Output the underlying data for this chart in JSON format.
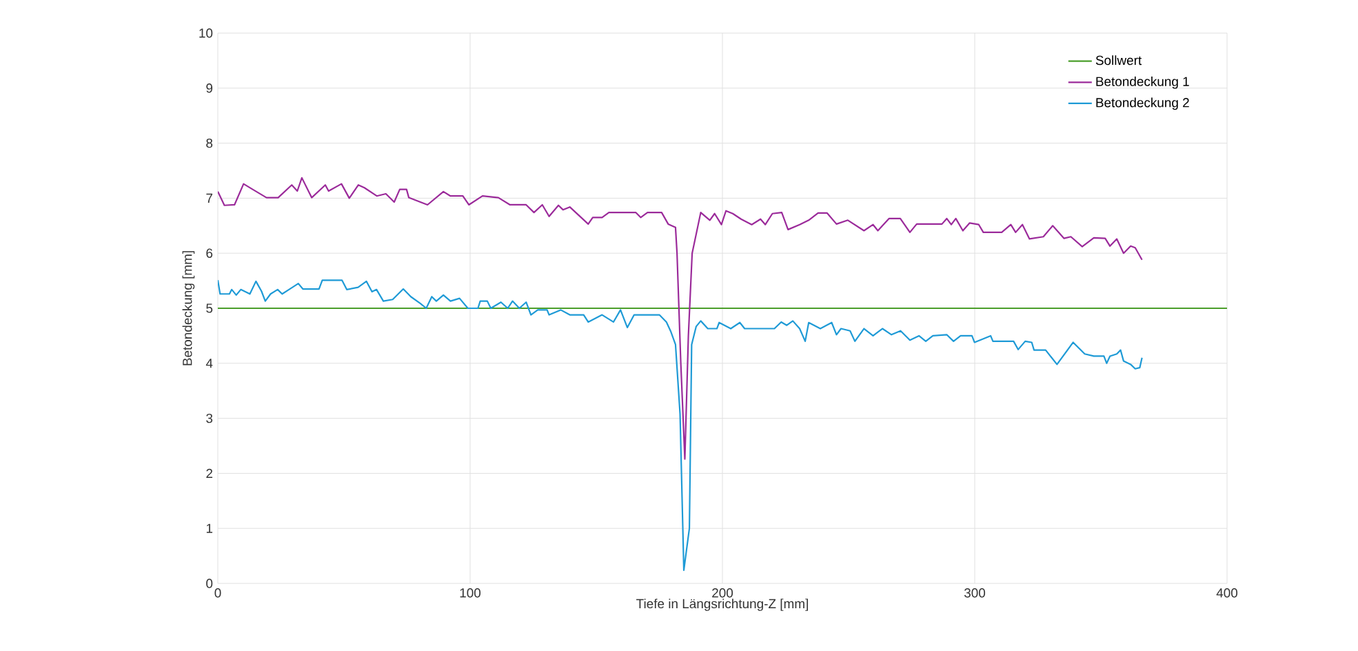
{
  "chart_data": {
    "type": "line",
    "xlabel": "Tiefe in Längsrichtung-Z [mm]",
    "ylabel": "Betondeckung [mm]",
    "xlim": [
      0,
      400
    ],
    "ylim": [
      0,
      10
    ],
    "xticks": [
      0,
      100,
      200,
      300,
      400
    ],
    "yticks": [
      0,
      1,
      2,
      3,
      4,
      5,
      6,
      7,
      8,
      9,
      10
    ],
    "grid": true,
    "legend": "top right",
    "series": [
      {
        "name": "Sollwert",
        "color": "#4a9e2a",
        "x": [
          0,
          400
        ],
        "values": [
          5,
          5
        ]
      },
      {
        "name": "Betondeckung 1",
        "color": "#9b2a9a",
        "x": [
          0,
          2.6,
          6.6,
          10.2,
          13.8,
          19.3,
          23.9,
          29.3,
          31.5,
          33.3,
          37.2,
          42.6,
          43.9,
          49.0,
          52.1,
          55.7,
          58.1,
          63.0,
          66.6,
          69.9,
          72.1,
          74.8,
          75.7,
          83.1,
          89.4,
          92.2,
          97.1,
          99.5,
          104.9,
          111.2,
          115.8,
          122.2,
          125.3,
          128.6,
          131.3,
          135.0,
          136.8,
          139.5,
          146.8,
          148.6,
          152.3,
          155.0,
          165.7,
          167.6,
          170.3,
          175.9,
          178.5,
          181.4,
          182.0,
          183.5,
          185.1,
          186.5,
          188.0,
          191.4,
          195.0,
          196.9,
          199.6,
          201.4,
          204.1,
          207.4,
          211.6,
          215.1,
          217.0,
          219.8,
          223.5,
          226.0,
          230.6,
          234.2,
          237.9,
          241.5,
          245.2,
          249.7,
          256.1,
          259.7,
          261.6,
          266.0,
          270.5,
          274.3,
          277.0,
          287.0,
          288.9,
          290.7,
          292.5,
          295.3,
          298.0,
          301.6,
          303.4,
          310.7,
          314.3,
          316.2,
          318.9,
          321.7,
          327.2,
          330.9,
          335.4,
          338.1,
          342.6,
          347.2,
          351.7,
          353.6,
          356.3,
          359.0,
          361.8,
          363.6,
          366.3
        ],
        "values": [
          7.12,
          6.87,
          6.88,
          7.26,
          7.16,
          7.01,
          7.01,
          7.24,
          7.13,
          7.37,
          7.01,
          7.24,
          7.13,
          7.26,
          7.0,
          7.24,
          7.19,
          7.04,
          7.08,
          6.93,
          7.16,
          7.16,
          7.01,
          6.88,
          7.12,
          7.04,
          7.04,
          6.88,
          7.04,
          7.01,
          6.88,
          6.88,
          6.74,
          6.88,
          6.67,
          6.87,
          6.79,
          6.84,
          6.53,
          6.65,
          6.65,
          6.74,
          6.74,
          6.65,
          6.74,
          6.74,
          6.53,
          6.47,
          6.0,
          4.0,
          2.26,
          4.5,
          6.0,
          6.74,
          6.6,
          6.72,
          6.52,
          6.77,
          6.72,
          6.62,
          6.52,
          6.62,
          6.52,
          6.72,
          6.74,
          6.43,
          6.52,
          6.6,
          6.73,
          6.73,
          6.53,
          6.6,
          6.41,
          6.52,
          6.41,
          6.63,
          6.63,
          6.38,
          6.53,
          6.53,
          6.63,
          6.52,
          6.63,
          6.41,
          6.55,
          6.52,
          6.38,
          6.38,
          6.52,
          6.38,
          6.52,
          6.26,
          6.3,
          6.5,
          6.27,
          6.3,
          6.12,
          6.28,
          6.27,
          6.13,
          6.26,
          6.0,
          6.13,
          6.1,
          5.88
        ]
      },
      {
        "name": "Betondeckung 2",
        "color": "#1e9ad6",
        "x": [
          0,
          0.9,
          4.6,
          5.5,
          7.3,
          9.1,
          12.7,
          15.1,
          17.3,
          18.8,
          20.9,
          23.7,
          25.5,
          28.2,
          31.9,
          33.7,
          40.1,
          41.4,
          49.2,
          51.1,
          55.6,
          58.9,
          61.1,
          62.9,
          65.6,
          69.3,
          73.5,
          76.5,
          80.2,
          82.6,
          84.8,
          86.6,
          89.4,
          92.2,
          95.8,
          99.1,
          103.1,
          104.0,
          106.8,
          108.2,
          112.2,
          114.9,
          116.8,
          119.5,
          122.2,
          124.1,
          126.8,
          130.5,
          131.3,
          135.9,
          139.5,
          145.0,
          146.8,
          152.3,
          156.8,
          159.6,
          162.3,
          165.0,
          175.0,
          177.8,
          179.6,
          181.4,
          183.2,
          184.7,
          186.9,
          187.8,
          189.6,
          191.4,
          194.2,
          197.8,
          198.7,
          203.3,
          206.9,
          208.8,
          220.6,
          223.3,
          225.5,
          227.9,
          230.6,
          232.8,
          234.2,
          238.8,
          243.3,
          245.2,
          247.0,
          250.6,
          252.5,
          256.1,
          259.7,
          263.4,
          267.0,
          270.6,
          274.3,
          277.9,
          280.6,
          283.4,
          288.9,
          291.6,
          294.4,
          298.9,
          299.9,
          306.3,
          307.2,
          315.4,
          317.2,
          320.0,
          322.6,
          323.5,
          328.1,
          332.6,
          339.0,
          343.6,
          347.2,
          351.2,
          352.3,
          353.6,
          356.3,
          357.8,
          359.0,
          361.8,
          363.6,
          365.4,
          366.3
        ],
        "values": [
          5.51,
          5.26,
          5.26,
          5.34,
          5.24,
          5.34,
          5.26,
          5.49,
          5.31,
          5.13,
          5.26,
          5.34,
          5.26,
          5.34,
          5.45,
          5.35,
          5.35,
          5.51,
          5.51,
          5.34,
          5.38,
          5.49,
          5.3,
          5.34,
          5.13,
          5.16,
          5.35,
          5.21,
          5.09,
          5.0,
          5.21,
          5.13,
          5.24,
          5.13,
          5.18,
          5.0,
          5.0,
          5.13,
          5.13,
          5.0,
          5.11,
          5.0,
          5.13,
          5.0,
          5.11,
          4.88,
          4.97,
          4.97,
          4.88,
          4.97,
          4.88,
          4.88,
          4.75,
          4.88,
          4.75,
          4.97,
          4.65,
          4.88,
          4.88,
          4.75,
          4.57,
          4.34,
          3.08,
          0.24,
          1.0,
          4.34,
          4.67,
          4.77,
          4.63,
          4.63,
          4.74,
          4.63,
          4.74,
          4.63,
          4.63,
          4.75,
          4.69,
          4.77,
          4.63,
          4.4,
          4.74,
          4.63,
          4.74,
          4.52,
          4.63,
          4.59,
          4.4,
          4.63,
          4.5,
          4.63,
          4.52,
          4.59,
          4.42,
          4.5,
          4.4,
          4.5,
          4.52,
          4.4,
          4.5,
          4.5,
          4.38,
          4.5,
          4.4,
          4.4,
          4.25,
          4.4,
          4.38,
          4.24,
          4.24,
          3.98,
          4.38,
          4.17,
          4.13,
          4.13,
          4.0,
          4.13,
          4.17,
          4.24,
          4.04,
          3.98,
          3.9,
          3.92,
          4.1
        ]
      }
    ]
  }
}
